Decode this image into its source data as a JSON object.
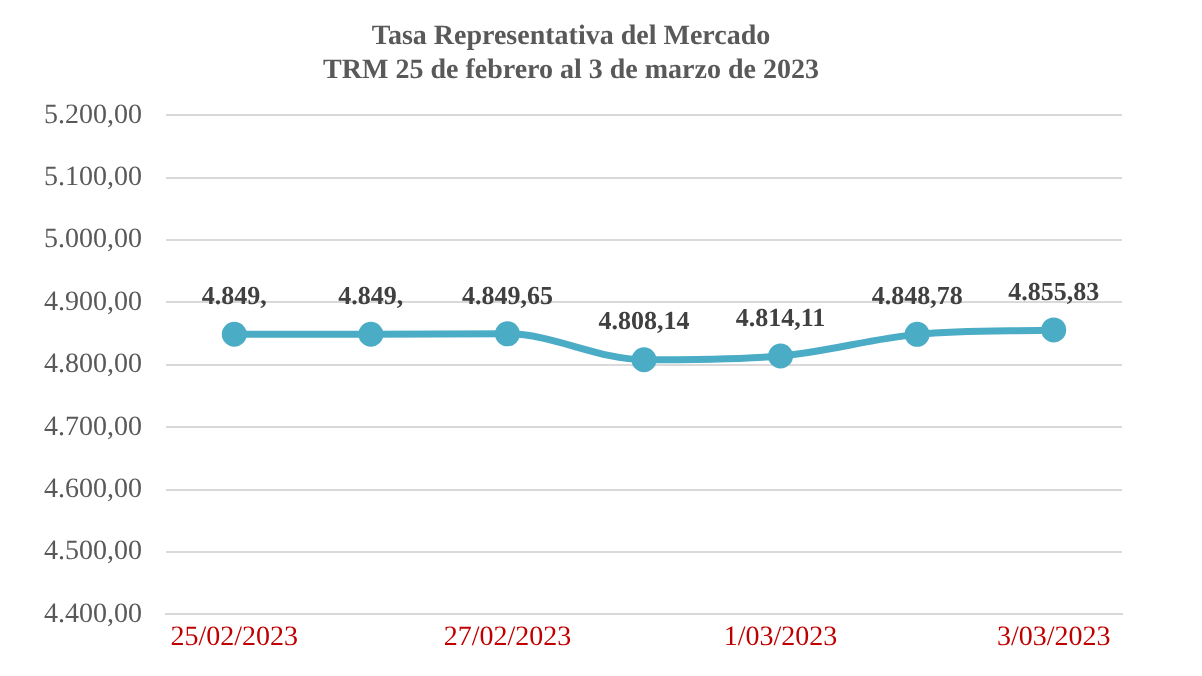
{
  "chart_data": {
    "type": "line",
    "title": "Tasa Representativa del Mercado\nTRM 25 de febrero al 3 de marzo de 2023",
    "categories": [
      "25/02/2023",
      null,
      "27/02/2023",
      null,
      "1/03/2023",
      null,
      "3/03/2023"
    ],
    "series": [
      {
        "color": "#4bacc6",
        "values": [
          4849,
          4849,
          4849.65,
          4808.14,
          4814.11,
          4848.78,
          4855.83
        ],
        "value_labels": [
          "4.849,",
          "4.849,",
          "4.849,65",
          "4.808,14",
          "4.814,11",
          "4.848,78",
          "4.855,83"
        ]
      }
    ],
    "ylim": [
      4400,
      5200
    ],
    "yticks": [
      {
        "value": 4400,
        "label": "4.400,00"
      },
      {
        "value": 4500,
        "label": "4.500,00"
      },
      {
        "value": 4600,
        "label": "4.600,00"
      },
      {
        "value": 4700,
        "label": "4.700,00"
      },
      {
        "value": 4800,
        "label": "4.800,00"
      },
      {
        "value": 4900,
        "label": "4.900,00"
      },
      {
        "value": 5000,
        "label": "5.000,00"
      },
      {
        "value": 5100,
        "label": "5.100,00"
      },
      {
        "value": 5200,
        "label": "5.200,00"
      }
    ],
    "grid": "y",
    "legend": false,
    "marker": "circle",
    "line_style": "solid"
  }
}
